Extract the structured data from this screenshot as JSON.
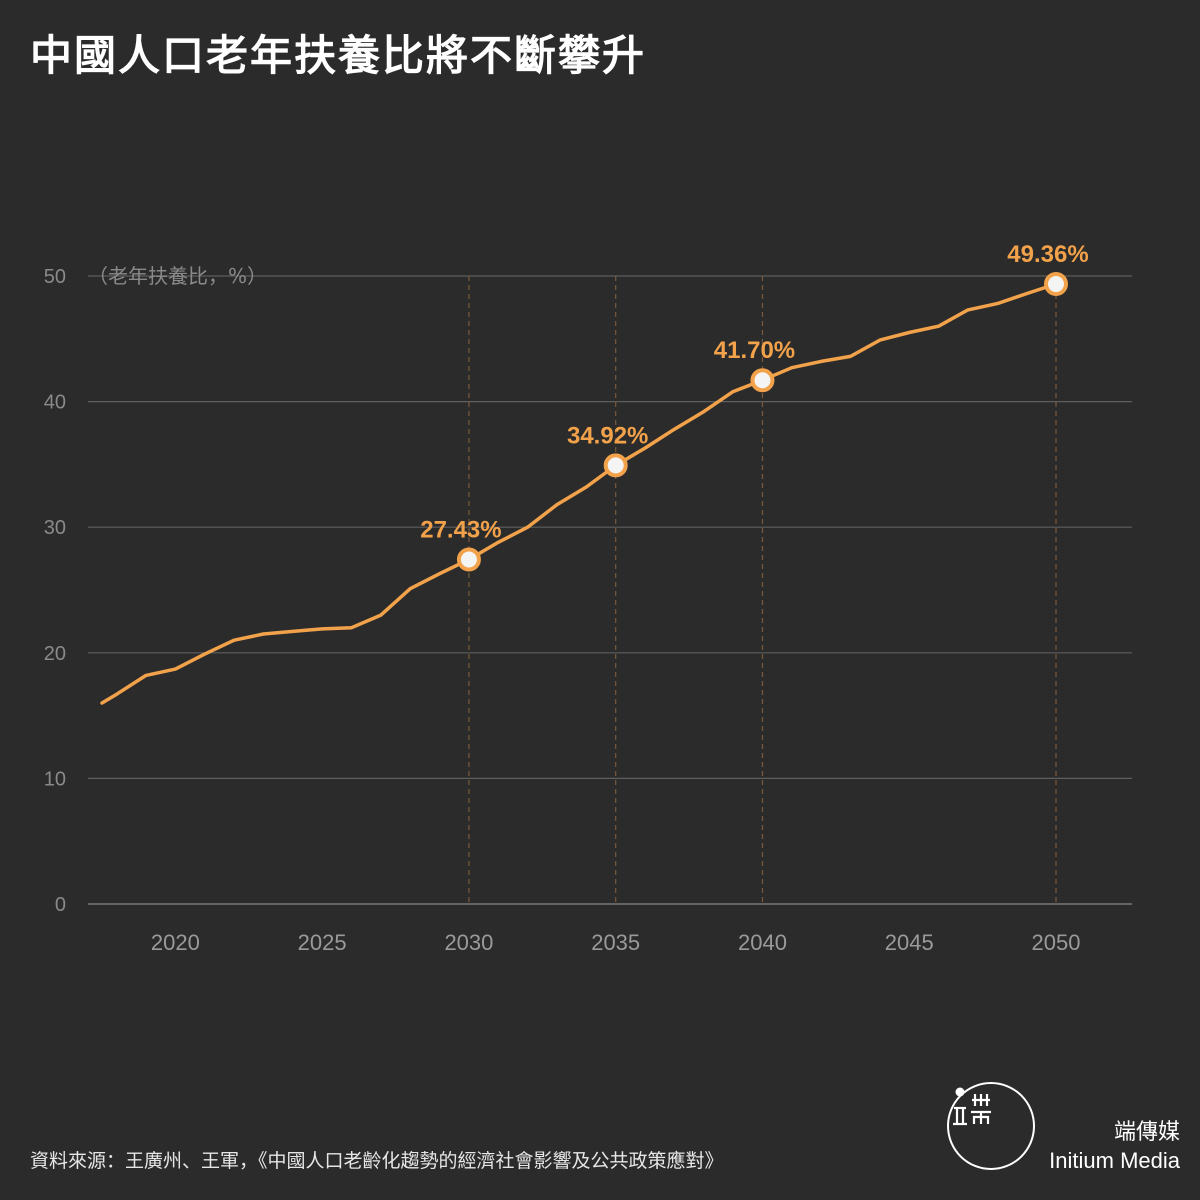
{
  "title": "中國人口老年扶養比將不斷攀升",
  "source": "資料來源：王廣州、王軍，《中國人口老齡化趨勢的經濟社會影響及公共政策應對》",
  "brand": {
    "name_cn": "端傳媒",
    "name_en": "Initium Media"
  },
  "colors": {
    "background": "#2b2b2b",
    "line": "#f2a24a",
    "grid": "#5e5e5e"
  },
  "chart_data": {
    "type": "line",
    "ylabel": "（老年扶養比，%）",
    "ylim": [
      0,
      50
    ],
    "xlim": [
      2017,
      2052
    ],
    "yticks": [
      0,
      10,
      20,
      30,
      40,
      50
    ],
    "xticks": [
      2020,
      2025,
      2030,
      2035,
      2040,
      2045,
      2050
    ],
    "grid": true,
    "series": [
      {
        "x": [
          2017.5,
          2018,
          2019,
          2020,
          2021,
          2022,
          2023,
          2024,
          2025,
          2026,
          2027,
          2028,
          2029,
          2030,
          2031,
          2032,
          2033,
          2034,
          2035,
          2036,
          2037,
          2038,
          2039,
          2040,
          2041,
          2042,
          2043,
          2044,
          2045,
          2046,
          2047,
          2048,
          2049,
          2050
        ],
        "values": [
          16.0,
          16.7,
          18.2,
          18.7,
          19.9,
          21.0,
          21.5,
          21.7,
          21.9,
          22.0,
          23.0,
          25.1,
          26.3,
          27.43,
          28.8,
          30.0,
          31.8,
          33.2,
          34.92,
          36.3,
          37.8,
          39.2,
          40.8,
          41.7,
          42.7,
          43.2,
          43.6,
          44.9,
          45.5,
          46.0,
          47.3,
          47.8,
          48.6,
          49.36
        ]
      }
    ],
    "highlights": [
      {
        "x": 2030,
        "y": 27.43,
        "label": "27.43%"
      },
      {
        "x": 2035,
        "y": 34.92,
        "label": "34.92%"
      },
      {
        "x": 2040,
        "y": 41.7,
        "label": "41.70%"
      },
      {
        "x": 2050,
        "y": 49.36,
        "label": "49.36%"
      }
    ]
  }
}
